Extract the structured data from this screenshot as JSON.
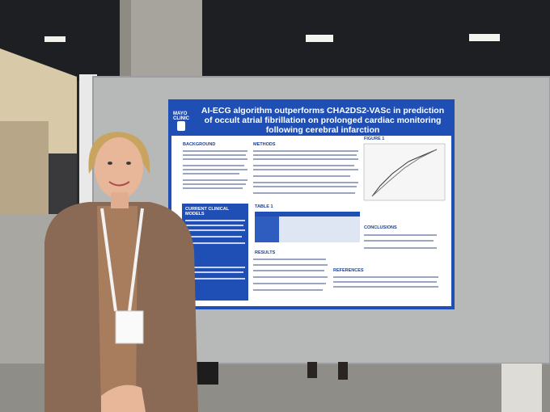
{
  "poster": {
    "logo_top": "MAYO",
    "logo_bottom": "CLINIC",
    "title": "AI-ECG algorithm outperforms CHA2DS2-VASc in prediction of occult atrial fibrillation on prolonged cardiac monitoring following cerebral infarction",
    "sections": [
      "BACKGROUND",
      "METHODS",
      "FIGURE 1",
      "CURRENT CLINICAL MODELS",
      "TABLE 1",
      "RESULTS",
      "CONCLUSIONS",
      "REFERENCES"
    ]
  }
}
